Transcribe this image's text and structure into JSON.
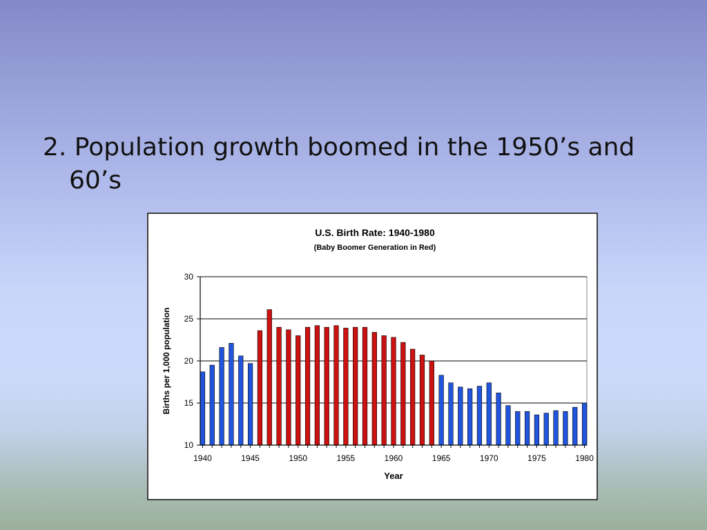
{
  "slide": {
    "heading": "2. Population growth boomed in the 1950’s and 60’s"
  },
  "colors": {
    "baby_boomer": "#cc1111",
    "other": "#2255dd"
  },
  "chart_data": {
    "type": "bar",
    "title": "U.S. Birth Rate: 1940-1980",
    "subtitle": "(Baby Boomer Generation in Red)",
    "xlabel": "Year",
    "ylabel": "Births per 1,000 population",
    "ylim": [
      10,
      30
    ],
    "yticks": [
      10,
      15,
      20,
      25,
      30
    ],
    "xticks": [
      "1940",
      "1945",
      "1950",
      "1955",
      "1960",
      "1965",
      "1970",
      "1975",
      "1980"
    ],
    "grid": true,
    "highlight_range": [
      1946,
      1964
    ],
    "x": [
      1940,
      1941,
      1942,
      1943,
      1944,
      1945,
      1946,
      1947,
      1948,
      1949,
      1950,
      1951,
      1952,
      1953,
      1954,
      1955,
      1956,
      1957,
      1958,
      1959,
      1960,
      1961,
      1962,
      1963,
      1964,
      1965,
      1966,
      1967,
      1968,
      1969,
      1970,
      1971,
      1972,
      1973,
      1974,
      1975,
      1976,
      1977,
      1978,
      1979,
      1980
    ],
    "values": [
      18.7,
      19.5,
      21.6,
      22.1,
      20.6,
      19.7,
      23.6,
      26.1,
      24.0,
      23.7,
      23.0,
      24.0,
      24.2,
      24.0,
      24.2,
      23.9,
      24.0,
      24.0,
      23.4,
      23.0,
      22.8,
      22.2,
      21.4,
      20.7,
      20.0,
      18.3,
      17.4,
      16.9,
      16.7,
      17.0,
      17.4,
      16.2,
      14.7,
      14.0,
      14.0,
      13.6,
      13.8,
      14.1,
      14.0,
      14.5,
      15.0
    ]
  }
}
